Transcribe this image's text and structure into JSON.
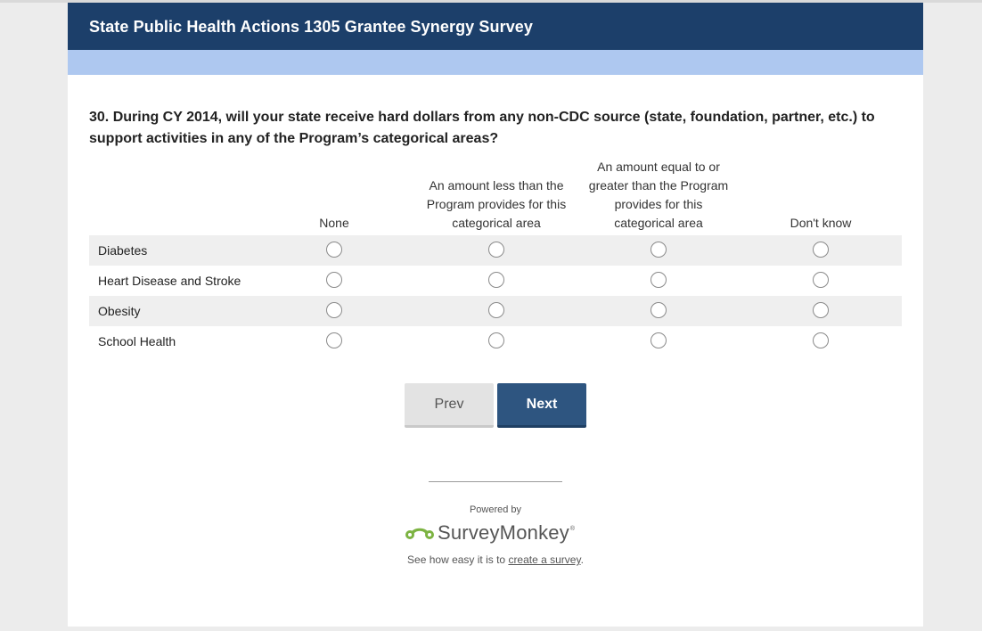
{
  "header": {
    "title": "State Public Health Actions 1305 Grantee Synergy Survey"
  },
  "question": {
    "text": "30. During CY 2014, will your state receive hard dollars from any non-CDC source (state, foundation, partner, etc.) to support activities in any of the Program’s categorical areas?"
  },
  "matrix": {
    "columns": [
      "None",
      "An amount less than the Program provides for this categorical area",
      "An amount equal to or greater than the Program provides for this categorical area",
      "Don't know"
    ],
    "rows": [
      "Diabetes",
      "Heart Disease and Stroke",
      "Obesity",
      "School Health"
    ],
    "colors": {
      "row_shade": "#efefef",
      "radio_border": "#8a8a8a"
    }
  },
  "nav": {
    "prev_label": "Prev",
    "next_label": "Next"
  },
  "footer": {
    "powered_by": "Powered by",
    "brand": "SurveyMonkey",
    "brand_reg": "®",
    "see_how_prefix": "See how easy it is to ",
    "see_how_link": "create a survey",
    "see_how_suffix": "."
  },
  "colors": {
    "header_bg": "#1c3f6a",
    "subbar_bg": "#aec8f0",
    "next_bg": "#2e5580",
    "prev_bg": "#e3e3e3",
    "logo_green": "#7cb342"
  },
  "icons": {
    "logo": "surveymonkey-logo-icon"
  }
}
